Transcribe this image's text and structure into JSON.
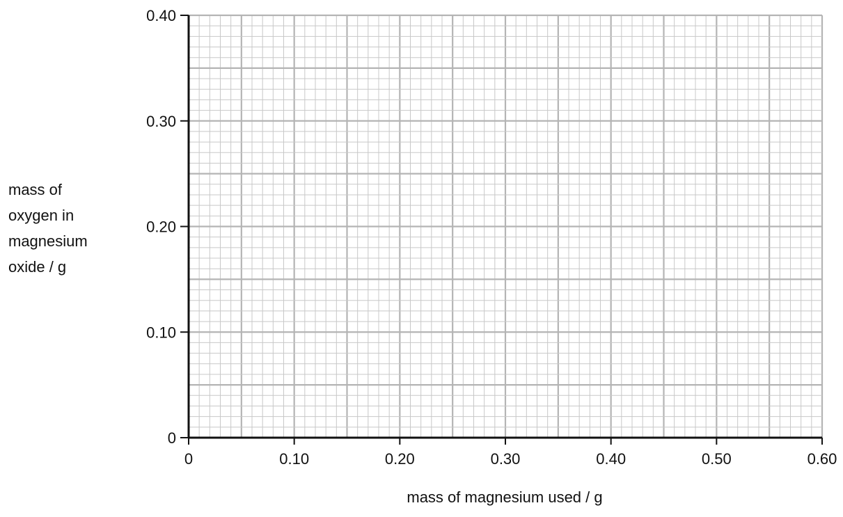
{
  "chart_data": {
    "type": "scatter",
    "title": "",
    "xlabel": "mass of magnesium used / g",
    "ylabel_lines": [
      "mass of",
      "oxygen in",
      "magnesium",
      "oxide / g"
    ],
    "xlim": [
      0,
      0.6
    ],
    "ylim": [
      0,
      0.4
    ],
    "x_ticks": [
      0,
      0.1,
      0.2,
      0.3,
      0.4,
      0.5,
      0.6
    ],
    "x_tick_labels": [
      "0",
      "0.10",
      "0.20",
      "0.30",
      "0.40",
      "0.50",
      "0.60"
    ],
    "y_ticks": [
      0,
      0.1,
      0.2,
      0.3,
      0.4
    ],
    "y_tick_labels": [
      "0",
      "0.10",
      "0.20",
      "0.30",
      "0.40"
    ],
    "grid": true,
    "grid_minor_step_x": 0.01,
    "grid_minor_step_y": 0.01,
    "grid_medium_step_x": 0.05,
    "grid_medium_step_y": 0.05,
    "series": [],
    "colors": {
      "axis": "#111111",
      "grid_minor": "#c8c8c8",
      "grid_major": "#b4b4b4",
      "text": "#111111"
    }
  }
}
